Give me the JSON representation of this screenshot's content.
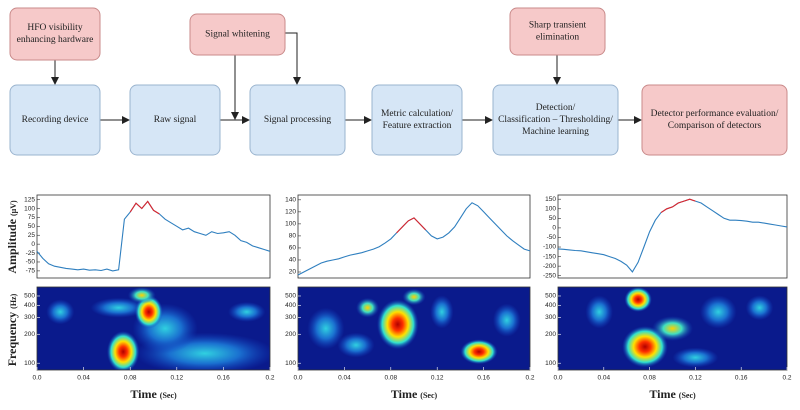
{
  "flowchart": {
    "nodes": [
      {
        "lines": [
          "HFO visibility",
          "enhancing hardware"
        ]
      },
      {
        "lines": [
          "Signal whitening"
        ]
      },
      {
        "lines": [
          "Sharp transient",
          "elimination"
        ]
      },
      {
        "lines": [
          "Recording device"
        ]
      },
      {
        "lines": [
          "Raw signal"
        ]
      },
      {
        "lines": [
          "Signal processing"
        ]
      },
      {
        "lines": [
          "Metric calculation/",
          "Feature extraction"
        ]
      },
      {
        "lines": [
          "Detection/",
          "Classification – Thresholding/",
          "Machine learning"
        ]
      },
      {
        "lines": [
          "Detector performance evaluation/",
          "Comparison of detectors"
        ]
      }
    ]
  },
  "axis_labels": {
    "amplitude": "Amplitude",
    "amplitude_unit": "(μV)",
    "frequency": "Frequency",
    "frequency_unit": "(Hz)",
    "time": "Time",
    "time_unit": "(Sec)"
  },
  "panels": [
    {
      "amplitude": {
        "type": "line",
        "x": [
          0,
          0.005,
          0.01,
          0.015,
          0.02,
          0.025,
          0.03,
          0.035,
          0.04,
          0.045,
          0.05,
          0.055,
          0.06,
          0.065,
          0.07,
          0.075,
          0.08,
          0.085,
          0.09,
          0.095,
          0.1,
          0.105,
          0.11,
          0.115,
          0.12,
          0.125,
          0.13,
          0.135,
          0.14,
          0.145,
          0.15,
          0.155,
          0.16,
          0.165,
          0.17,
          0.175,
          0.18,
          0.185,
          0.19,
          0.195,
          0.2
        ],
        "series": [
          {
            "color": "#2f7fbf",
            "values": [
              -20,
              -40,
              -55,
              -62,
              -65,
              -68,
              -70,
              -72,
              -70,
              -73,
              -72,
              -74,
              -70,
              -75,
              -72,
              70,
              90,
              115,
              100,
              120,
              95,
              85,
              70,
              60,
              50,
              40,
              45,
              35,
              30,
              25,
              35,
              30,
              32,
              35,
              25,
              10,
              5,
              -5,
              -10,
              -15,
              -20
            ]
          },
          {
            "color": "#e0252a",
            "values": [
              null,
              null,
              null,
              null,
              null,
              null,
              null,
              null,
              null,
              null,
              null,
              null,
              null,
              null,
              null,
              null,
              90,
              115,
              100,
              120,
              95,
              85,
              null,
              null,
              null,
              null,
              null,
              null,
              null,
              null,
              null,
              null,
              null,
              null,
              null,
              null,
              null,
              null,
              null,
              null,
              null
            ]
          }
        ],
        "xlim": [
          0,
          0.2
        ],
        "ylim": [
          -95,
          138
        ],
        "yticks": [
          125,
          100,
          75,
          50,
          25,
          0,
          -25,
          -50,
          -75
        ]
      },
      "spectrogram": {
        "type": "spectrogram",
        "log_scale": true,
        "xlim": [
          0,
          0.2
        ],
        "ylim": [
          85,
          620
        ],
        "yticks": [
          500,
          400,
          300,
          200,
          100
        ],
        "xticks": [
          {
            "value": 0,
            "label": "0.0"
          },
          0.04,
          0.08,
          0.12,
          0.16,
          0.2
        ]
      }
    },
    {
      "amplitude": {
        "type": "line",
        "x": [
          0,
          0.005,
          0.01,
          0.015,
          0.02,
          0.025,
          0.03,
          0.035,
          0.04,
          0.045,
          0.05,
          0.055,
          0.06,
          0.065,
          0.07,
          0.075,
          0.08,
          0.085,
          0.09,
          0.095,
          0.1,
          0.105,
          0.11,
          0.115,
          0.12,
          0.125,
          0.13,
          0.135,
          0.14,
          0.145,
          0.15,
          0.155,
          0.16,
          0.165,
          0.17,
          0.175,
          0.18,
          0.185,
          0.19,
          0.195,
          0.2
        ],
        "series": [
          {
            "color": "#2f7fbf",
            "values": [
              15,
              20,
              25,
              30,
              35,
              38,
              40,
              42,
              45,
              48,
              50,
              52,
              55,
              58,
              62,
              68,
              75,
              85,
              95,
              105,
              110,
              100,
              90,
              80,
              75,
              78,
              85,
              95,
              110,
              125,
              135,
              130,
              120,
              110,
              100,
              90,
              80,
              72,
              65,
              58,
              55
            ]
          },
          {
            "color": "#e0252a",
            "values": [
              null,
              null,
              null,
              null,
              null,
              null,
              null,
              null,
              null,
              null,
              null,
              null,
              null,
              null,
              null,
              null,
              null,
              85,
              95,
              105,
              110,
              100,
              90,
              null,
              null,
              null,
              null,
              null,
              null,
              null,
              null,
              null,
              null,
              null,
              null,
              null,
              null,
              null,
              null,
              null,
              null
            ]
          }
        ],
        "xlim": [
          0,
          0.2
        ],
        "ylim": [
          10,
          148
        ],
        "yticks": [
          140,
          120,
          100,
          80,
          60,
          40,
          20
        ]
      },
      "spectrogram": {
        "type": "spectrogram",
        "log_scale": true,
        "xlim": [
          0,
          0.2
        ],
        "ylim": [
          85,
          620
        ],
        "yticks": [
          500,
          400,
          300,
          200,
          100
        ],
        "xticks": [
          {
            "value": 0,
            "label": "0.0"
          },
          0.04,
          0.08,
          0.12,
          0.16,
          0.2
        ]
      }
    },
    {
      "amplitude": {
        "type": "line",
        "x": [
          0,
          0.005,
          0.01,
          0.015,
          0.02,
          0.025,
          0.03,
          0.035,
          0.04,
          0.045,
          0.05,
          0.055,
          0.06,
          0.065,
          0.07,
          0.075,
          0.08,
          0.085,
          0.09,
          0.095,
          0.1,
          0.105,
          0.11,
          0.115,
          0.12,
          0.125,
          0.13,
          0.135,
          0.14,
          0.145,
          0.15,
          0.155,
          0.16,
          0.165,
          0.17,
          0.175,
          0.18,
          0.185,
          0.19,
          0.195,
          0.2
        ],
        "series": [
          {
            "color": "#2f7fbf",
            "values": [
              -110,
              -112,
              -115,
              -118,
              -120,
              -125,
              -130,
              -135,
              -140,
              -150,
              -160,
              -175,
              -195,
              -230,
              -180,
              -100,
              -20,
              40,
              80,
              100,
              110,
              130,
              140,
              150,
              140,
              130,
              110,
              90,
              70,
              50,
              40,
              40,
              38,
              35,
              30,
              30,
              25,
              20,
              15,
              10,
              5
            ]
          },
          {
            "color": "#e0252a",
            "values": [
              null,
              null,
              null,
              null,
              null,
              null,
              null,
              null,
              null,
              null,
              null,
              null,
              null,
              null,
              null,
              null,
              null,
              null,
              80,
              100,
              110,
              130,
              140,
              150,
              140,
              null,
              null,
              null,
              null,
              null,
              null,
              null,
              null,
              null,
              null,
              null,
              null,
              null,
              null,
              null,
              null
            ]
          }
        ],
        "xlim": [
          0,
          0.2
        ],
        "ylim": [
          -262,
          172
        ],
        "yticks": [
          150,
          100,
          50,
          0,
          -50,
          -100,
          -150,
          -200,
          -250
        ]
      },
      "spectrogram": {
        "type": "spectrogram",
        "log_scale": true,
        "xlim": [
          0,
          0.2
        ],
        "ylim": [
          85,
          620
        ],
        "yticks": [
          500,
          400,
          300,
          200,
          100
        ],
        "xticks": [
          {
            "value": 0,
            "label": "0.0"
          },
          0.04,
          0.08,
          0.12,
          0.16,
          0.2
        ]
      }
    }
  ]
}
